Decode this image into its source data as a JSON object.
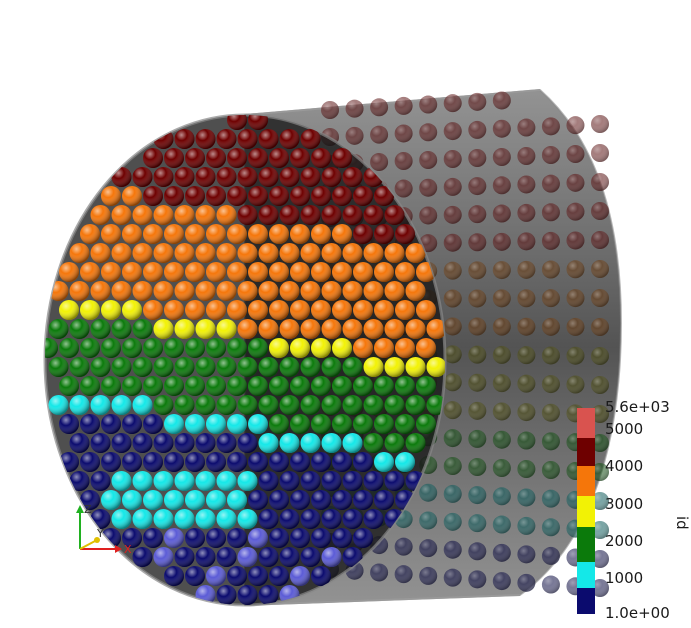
{
  "scene": {
    "description_colors": {
      "bands_bottom_to_top": [
        "#0b0b6e",
        "#14e8e8",
        "#0b7a0b",
        "#f2f205",
        "#f5760a",
        "#6e0000"
      ],
      "highlight_blue": "#5b5bd6",
      "container": "#7a7a7a"
    }
  },
  "colorbar": {
    "title": "id",
    "max_label": "5.6e+03",
    "min_label": "1.0e+00",
    "ticks": [
      "5000",
      "4000",
      "3000",
      "2000",
      "1000"
    ],
    "segments": [
      "#6e0000",
      "#f5760a",
      "#f2f205",
      "#0b7a0b",
      "#14e8e8",
      "#0b0b6e"
    ],
    "top_color": "#d9534f"
  },
  "axes": {
    "x_label": "X",
    "y_label": "Y",
    "z_label": "Z",
    "x_color": "#e02020",
    "y_color": "#e0c000",
    "z_color": "#20b020"
  }
}
